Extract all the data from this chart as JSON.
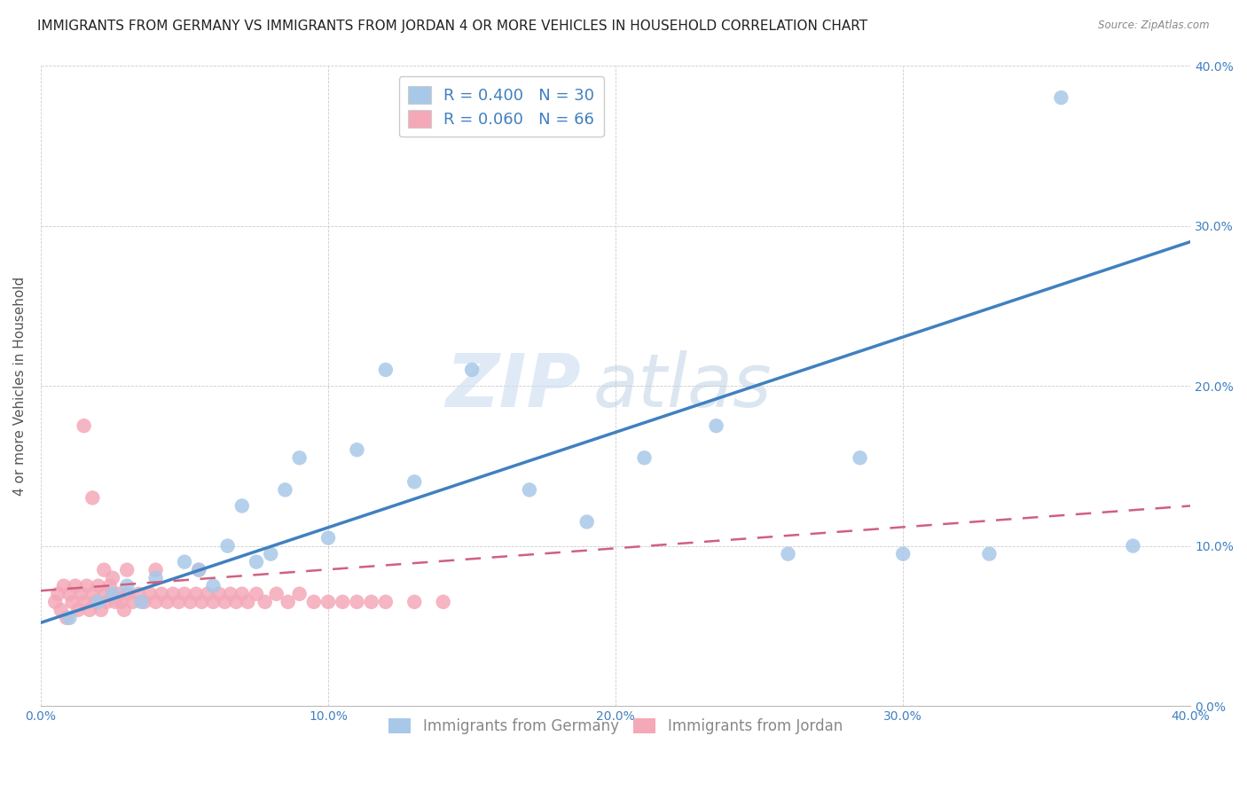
{
  "title": "IMMIGRANTS FROM GERMANY VS IMMIGRANTS FROM JORDAN 4 OR MORE VEHICLES IN HOUSEHOLD CORRELATION CHART",
  "source": "Source: ZipAtlas.com",
  "ylabel": "4 or more Vehicles in Household",
  "xlim": [
    0.0,
    0.4
  ],
  "ylim": [
    0.0,
    0.4
  ],
  "xticks": [
    0.0,
    0.1,
    0.2,
    0.3,
    0.4
  ],
  "yticks": [
    0.0,
    0.1,
    0.2,
    0.3,
    0.4
  ],
  "xtick_labels": [
    "0.0%",
    "10.0%",
    "20.0%",
    "30.0%",
    "40.0%"
  ],
  "ytick_labels": [
    "0.0%",
    "10.0%",
    "20.0%",
    "30.0%",
    "40.0%"
  ],
  "legend_labels": [
    "Immigrants from Germany",
    "Immigrants from Jordan"
  ],
  "R_germany": 0.4,
  "N_germany": 30,
  "R_jordan": 0.06,
  "N_jordan": 66,
  "color_germany": "#a8c8e8",
  "color_jordan": "#f4a8b8",
  "line_color_germany": "#4080c0",
  "line_color_jordan": "#d06080",
  "watermark_zip": "ZIP",
  "watermark_atlas": "atlas",
  "title_fontsize": 11,
  "axis_label_fontsize": 11,
  "tick_fontsize": 10,
  "germany_x": [
    0.01,
    0.02,
    0.025,
    0.03,
    0.035,
    0.04,
    0.05,
    0.055,
    0.06,
    0.065,
    0.07,
    0.075,
    0.08,
    0.085,
    0.09,
    0.1,
    0.11,
    0.12,
    0.13,
    0.15,
    0.17,
    0.19,
    0.21,
    0.235,
    0.26,
    0.285,
    0.3,
    0.33,
    0.355,
    0.38
  ],
  "germany_y": [
    0.055,
    0.065,
    0.07,
    0.075,
    0.065,
    0.08,
    0.09,
    0.085,
    0.075,
    0.1,
    0.125,
    0.09,
    0.095,
    0.135,
    0.155,
    0.105,
    0.16,
    0.21,
    0.14,
    0.21,
    0.135,
    0.115,
    0.155,
    0.175,
    0.095,
    0.155,
    0.095,
    0.095,
    0.38,
    0.1
  ],
  "jordan_x": [
    0.005,
    0.006,
    0.007,
    0.008,
    0.009,
    0.01,
    0.011,
    0.012,
    0.013,
    0.014,
    0.015,
    0.016,
    0.017,
    0.018,
    0.019,
    0.02,
    0.021,
    0.022,
    0.023,
    0.024,
    0.025,
    0.026,
    0.027,
    0.028,
    0.029,
    0.03,
    0.032,
    0.034,
    0.036,
    0.038,
    0.04,
    0.042,
    0.044,
    0.046,
    0.048,
    0.05,
    0.052,
    0.054,
    0.056,
    0.058,
    0.06,
    0.062,
    0.064,
    0.066,
    0.068,
    0.07,
    0.072,
    0.075,
    0.078,
    0.082,
    0.086,
    0.09,
    0.095,
    0.1,
    0.105,
    0.11,
    0.115,
    0.12,
    0.13,
    0.14,
    0.015,
    0.018,
    0.022,
    0.03,
    0.04,
    0.055
  ],
  "jordan_y": [
    0.065,
    0.07,
    0.06,
    0.075,
    0.055,
    0.07,
    0.065,
    0.075,
    0.06,
    0.07,
    0.065,
    0.075,
    0.06,
    0.07,
    0.065,
    0.075,
    0.06,
    0.07,
    0.065,
    0.075,
    0.08,
    0.065,
    0.07,
    0.065,
    0.06,
    0.07,
    0.065,
    0.07,
    0.065,
    0.07,
    0.065,
    0.07,
    0.065,
    0.07,
    0.065,
    0.07,
    0.065,
    0.07,
    0.065,
    0.07,
    0.065,
    0.07,
    0.065,
    0.07,
    0.065,
    0.07,
    0.065,
    0.07,
    0.065,
    0.07,
    0.065,
    0.07,
    0.065,
    0.065,
    0.065,
    0.065,
    0.065,
    0.065,
    0.065,
    0.065,
    0.175,
    0.13,
    0.085,
    0.085,
    0.085,
    0.085
  ],
  "germany_line_x0": 0.0,
  "germany_line_y0": 0.052,
  "germany_line_x1": 0.4,
  "germany_line_y1": 0.29,
  "jordan_line_x0": 0.0,
  "jordan_line_y0": 0.072,
  "jordan_line_x1": 0.4,
  "jordan_line_y1": 0.125
}
